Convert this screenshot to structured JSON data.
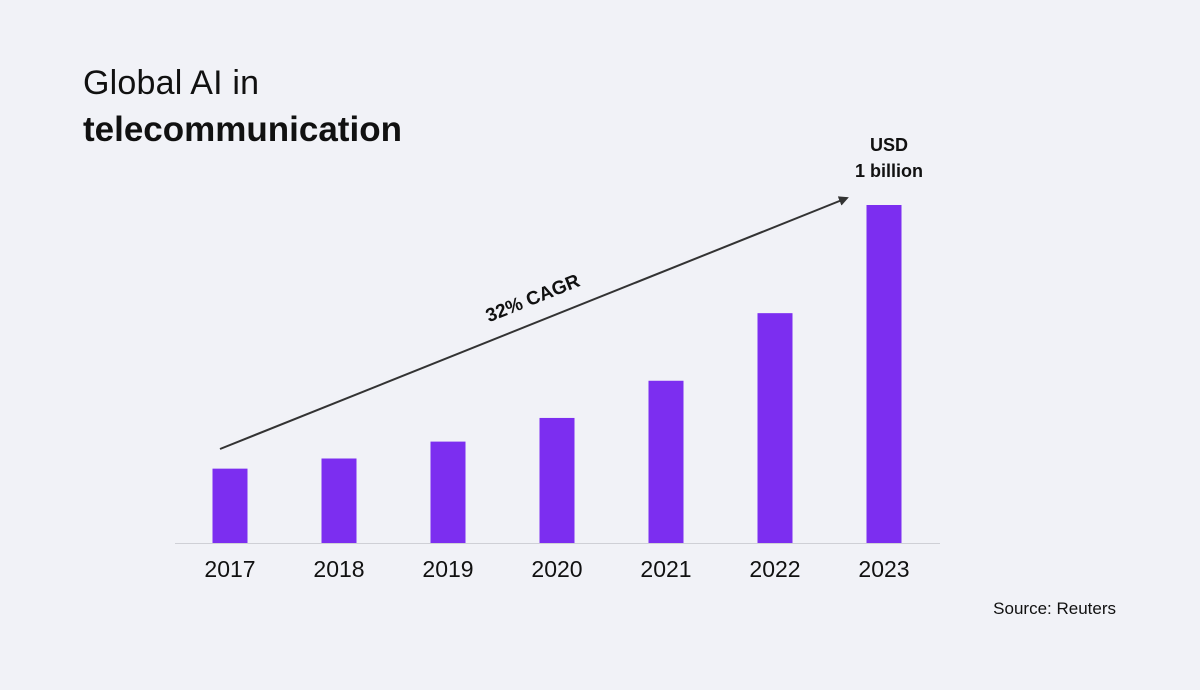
{
  "title": {
    "line1": "Global AI in",
    "line2": "telecommunication"
  },
  "source": "Source: Reuters",
  "colors": {
    "bar": "#7c2ef0",
    "background": "#f1f2f7",
    "text": "#111111",
    "axis": "#cfd0d6",
    "arrow": "#333333"
  },
  "chart_data": {
    "type": "bar",
    "categories": [
      "2017",
      "2018",
      "2019",
      "2020",
      "2021",
      "2022",
      "2023"
    ],
    "values": [
      0.22,
      0.25,
      0.3,
      0.37,
      0.48,
      0.68,
      1.0
    ],
    "ylim": [
      0,
      1.0
    ],
    "value_unit": "USD billion",
    "grid": false,
    "annotations": {
      "end_value_line1": "USD",
      "end_value_line2": "1 billion",
      "trend_label": "32% CAGR"
    }
  }
}
